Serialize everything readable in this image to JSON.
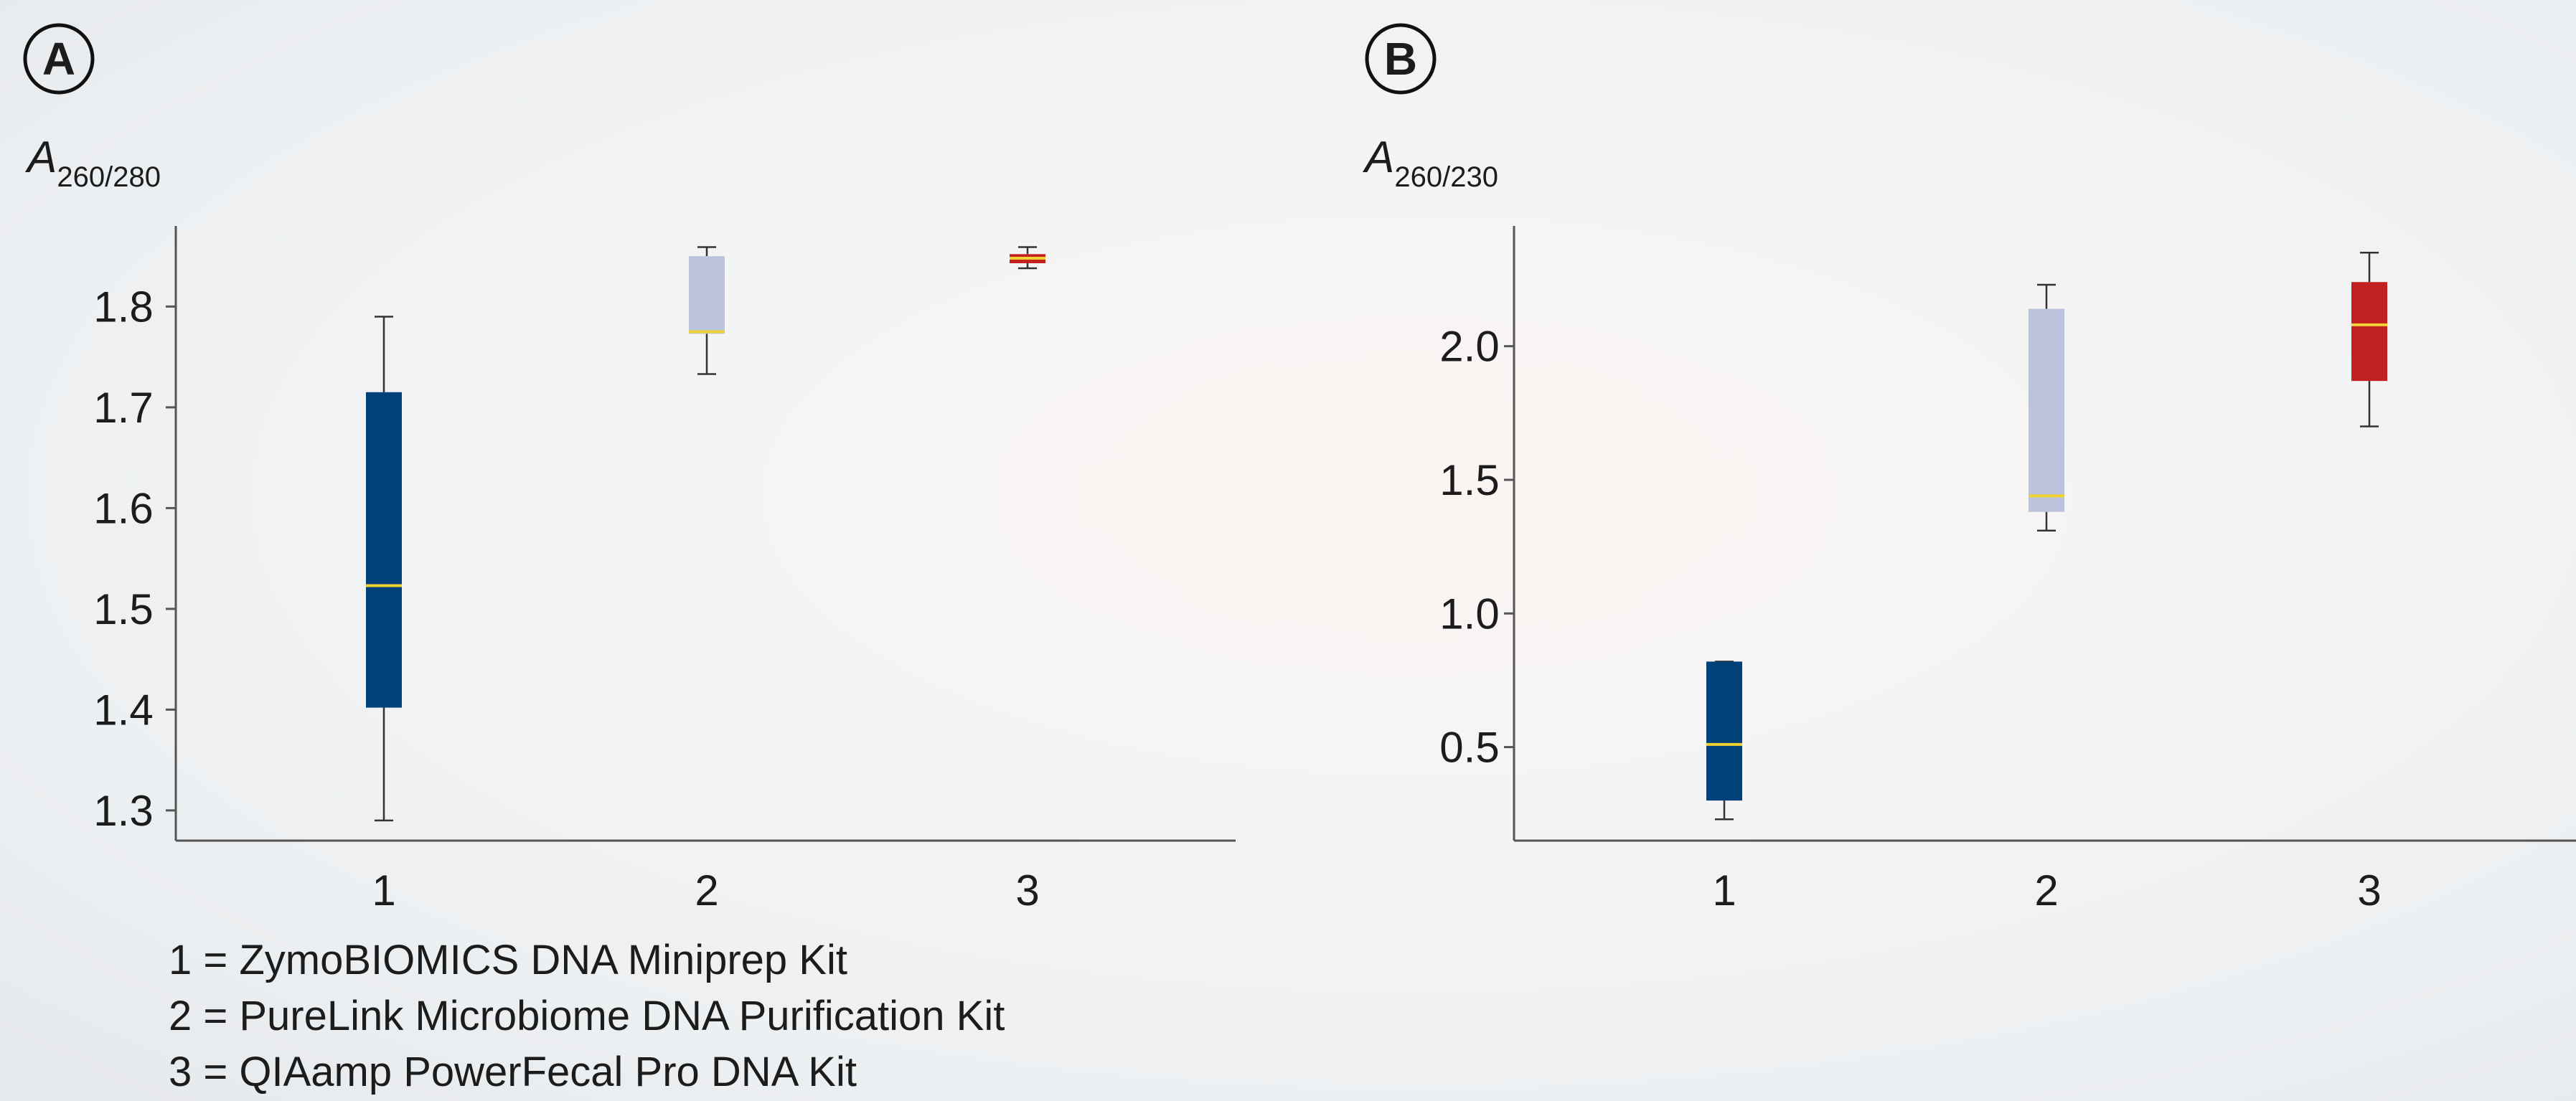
{
  "panels": [
    {
      "letter": "A",
      "ylabel_main": "A",
      "ylabel_sub": "260/280",
      "chart_data": {
        "type": "box",
        "ylabel": "A260/280",
        "categories": [
          "1",
          "2",
          "3"
        ],
        "yticks": [
          1.3,
          1.4,
          1.5,
          1.6,
          1.7,
          1.8
        ],
        "ylim": [
          1.27,
          1.88
        ],
        "boxes": [
          {
            "category": "1",
            "min": 1.29,
            "q1": 1.402,
            "median": 1.523,
            "q3": 1.715,
            "max": 1.79,
            "color": "#00417a"
          },
          {
            "category": "2",
            "min": 1.733,
            "q1": 1.773,
            "median": 1.775,
            "q3": 1.85,
            "max": 1.859,
            "color": "#bcc3dc"
          },
          {
            "category": "3",
            "min": 1.838,
            "q1": 1.843,
            "median": 1.848,
            "q3": 1.852,
            "max": 1.859,
            "color": "#c0201f"
          }
        ],
        "median_color": "#f1d233",
        "grid": false
      }
    },
    {
      "letter": "B",
      "ylabel_main": "A",
      "ylabel_sub": "260/230",
      "chart_data": {
        "type": "box",
        "ylabel": "A260/230",
        "categories": [
          "1",
          "2",
          "3"
        ],
        "yticks": [
          0.5,
          1.0,
          1.5,
          2.0
        ],
        "ytick_labels": [
          "0.5",
          "1.0",
          "1.5",
          "2.0"
        ],
        "ylim": [
          0.15,
          2.45
        ],
        "boxes": [
          {
            "category": "1",
            "min": 0.23,
            "q1": 0.3,
            "median": 0.51,
            "q3": 0.82,
            "max": 0.82,
            "color": "#00417a"
          },
          {
            "category": "2",
            "min": 1.31,
            "q1": 1.38,
            "median": 1.44,
            "q3": 2.14,
            "max": 2.23,
            "color": "#bcc3dc"
          },
          {
            "category": "3",
            "min": 1.7,
            "q1": 1.87,
            "median": 2.08,
            "q3": 2.24,
            "max": 2.35,
            "color": "#c0201f"
          }
        ],
        "median_color": "#f1d233",
        "grid": false
      }
    }
  ],
  "legend": [
    "1 = ZymoBIOMICS DNA Miniprep Kit",
    "2 = PureLink Microbiome DNA Purification Kit",
    "3 = QIAamp PowerFecal Pro DNA Kit"
  ]
}
